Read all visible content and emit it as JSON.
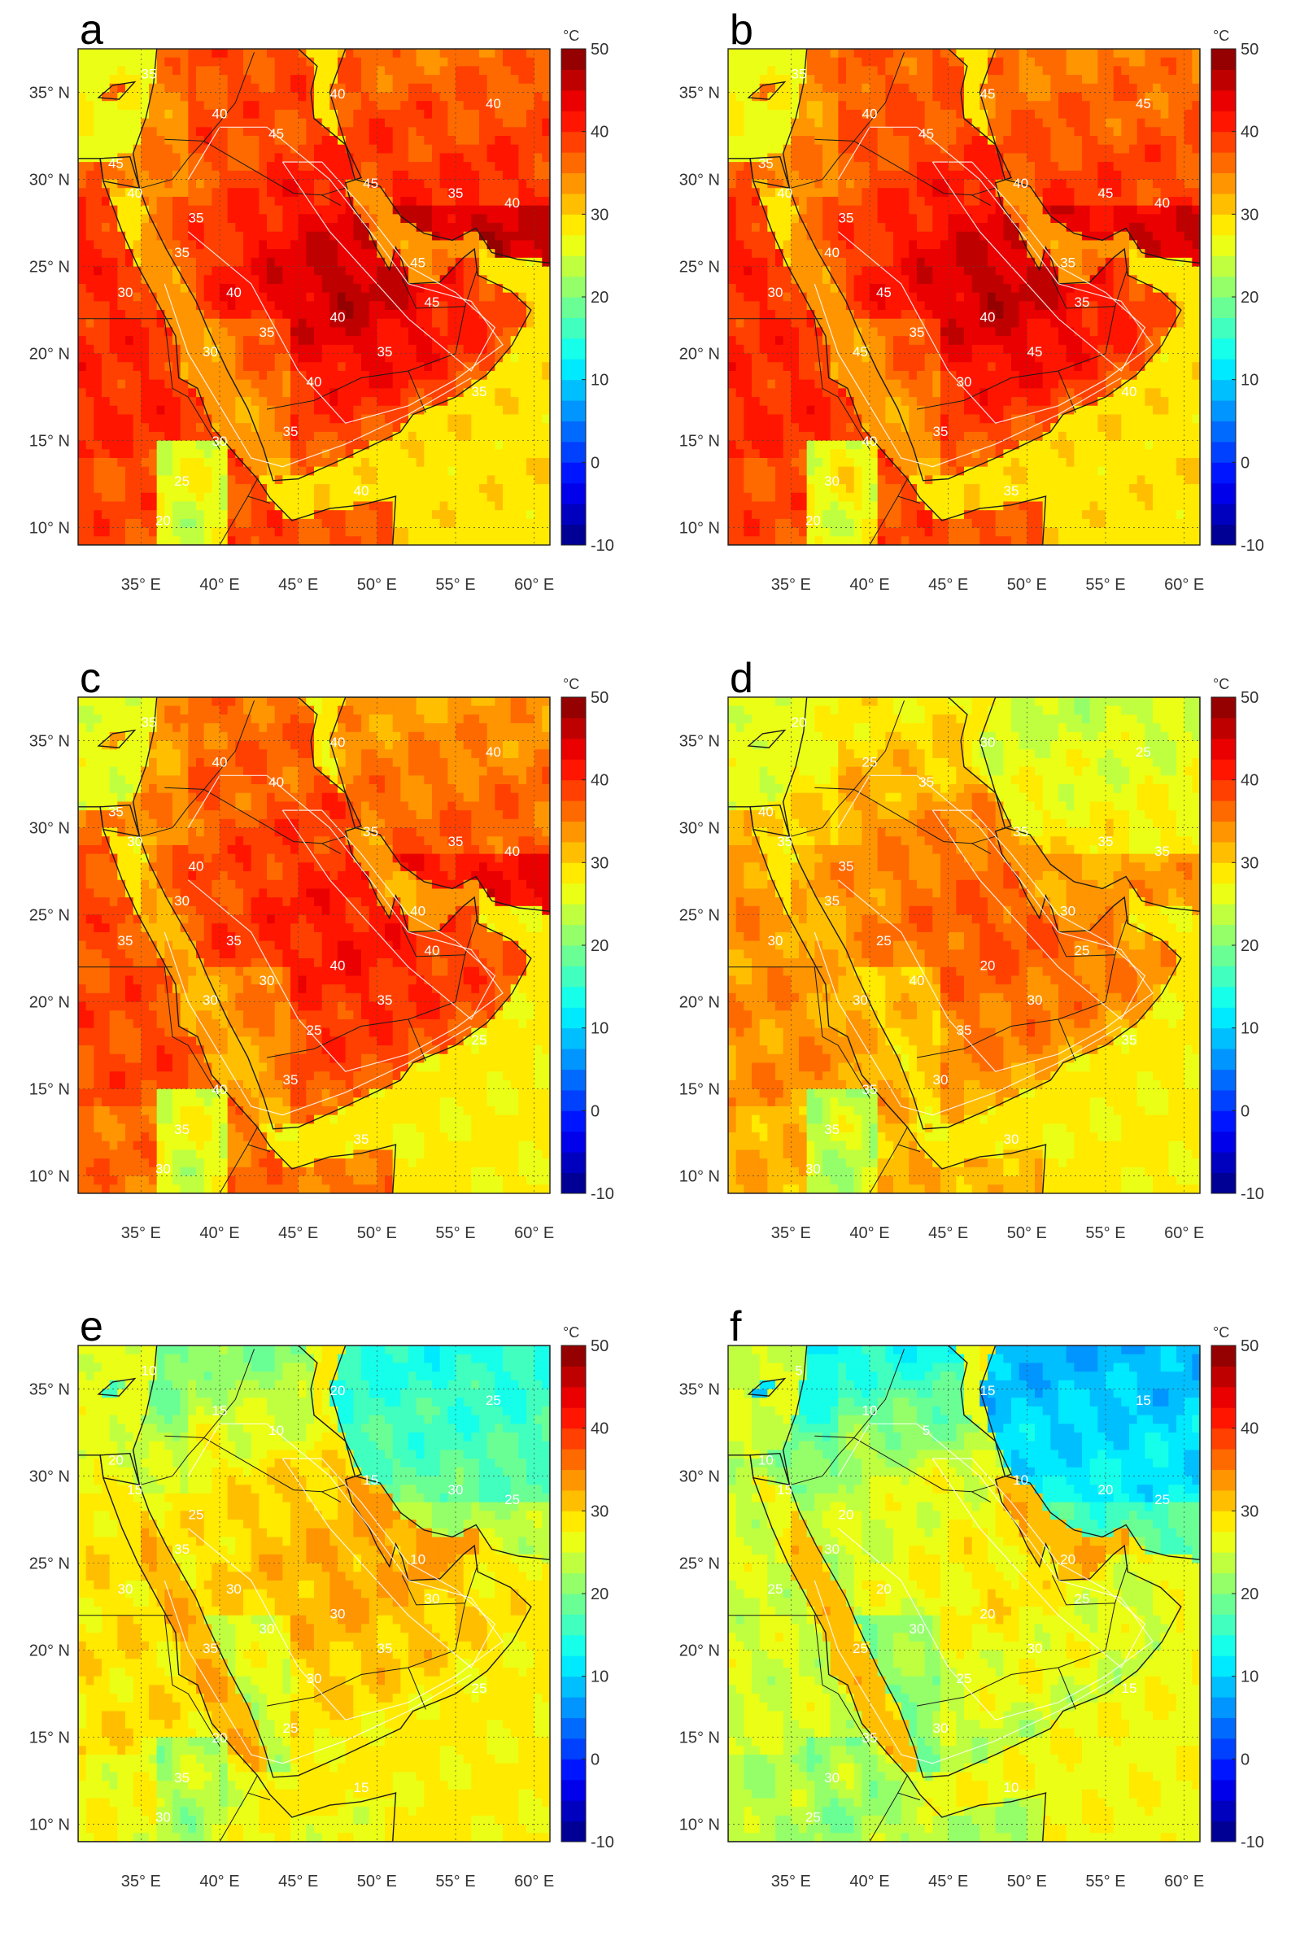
{
  "figure": {
    "unit_label": "°C",
    "colorbar": {
      "min": -10,
      "max": 50,
      "step": 5,
      "ticks": [
        "50",
        "40",
        "30",
        "20",
        "10",
        "0",
        "-10"
      ],
      "colormap": "jet"
    },
    "axes": {
      "lon_range": [
        31,
        61
      ],
      "lat_range": [
        9,
        37.5
      ],
      "lon_ticks": [
        "35° E",
        "40° E",
        "45° E",
        "50° E",
        "55° E",
        "60° E"
      ],
      "lat_ticks": [
        "35° N",
        "30° N",
        "25° N",
        "20° N",
        "15° N",
        "10° N"
      ],
      "gridlines": "dotted"
    },
    "panels": [
      {
        "letter": "a",
        "labels": [
          "35",
          "40",
          "45",
          "40",
          "45",
          "45",
          "40",
          "35",
          "40",
          "45",
          "40",
          "35",
          "30",
          "35",
          "40",
          "30",
          "35",
          "40",
          "35",
          "30",
          "25",
          "20",
          "40",
          "35",
          "45",
          "35",
          "40"
        ]
      },
      {
        "letter": "b",
        "labels": [
          "35",
          "40",
          "45",
          "45",
          "40",
          "35",
          "45",
          "45",
          "40",
          "35",
          "40",
          "35",
          "30",
          "40",
          "45",
          "45",
          "35",
          "30",
          "35",
          "40",
          "30",
          "20",
          "40",
          "45",
          "35",
          "40",
          "35"
        ]
      },
      {
        "letter": "c",
        "labels": [
          "35",
          "40",
          "40",
          "40",
          "35",
          "40",
          "40",
          "35",
          "40",
          "35",
          "30",
          "40",
          "35",
          "30",
          "35",
          "30",
          "30",
          "25",
          "35",
          "40",
          "35",
          "30",
          "40",
          "35",
          "40",
          "25",
          "35"
        ]
      },
      {
        "letter": "d",
        "labels": [
          "20",
          "25",
          "35",
          "30",
          "35",
          "30",
          "25",
          "35",
          "35",
          "40",
          "35",
          "35",
          "30",
          "35",
          "25",
          "30",
          "40",
          "35",
          "30",
          "35",
          "35",
          "30",
          "20",
          "30",
          "25",
          "35",
          "30"
        ]
      },
      {
        "letter": "e",
        "labels": [
          "10",
          "15",
          "10",
          "20",
          "15",
          "10",
          "25",
          "30",
          "25",
          "20",
          "15",
          "25",
          "30",
          "35",
          "30",
          "35",
          "30",
          "30",
          "25",
          "20",
          "35",
          "30",
          "30",
          "35",
          "30",
          "25",
          "15"
        ]
      },
      {
        "letter": "f",
        "labels": [
          "5",
          "10",
          "5",
          "15",
          "10",
          "20",
          "15",
          "20",
          "25",
          "10",
          "15",
          "20",
          "25",
          "30",
          "20",
          "25",
          "30",
          "25",
          "30",
          "35",
          "30",
          "25",
          "20",
          "30",
          "25",
          "15",
          "10"
        ]
      }
    ]
  }
}
